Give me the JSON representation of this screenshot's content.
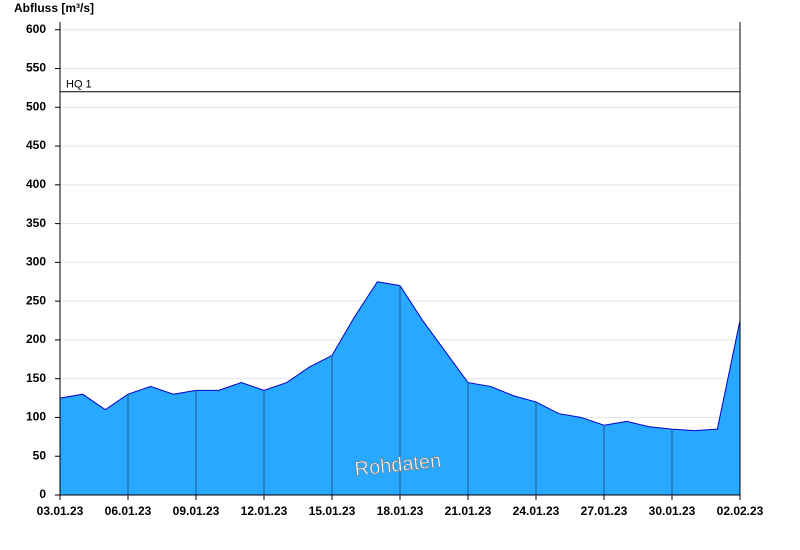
{
  "chart_data": {
    "type": "area",
    "y_label": "Abfluss [m³/s]",
    "watermark": "Rohdaten",
    "x": [
      "03.01.23",
      "04.01.23",
      "05.01.23",
      "06.01.23",
      "07.01.23",
      "08.01.23",
      "09.01.23",
      "10.01.23",
      "11.01.23",
      "12.01.23",
      "13.01.23",
      "14.01.23",
      "15.01.23",
      "16.01.23",
      "17.01.23",
      "18.01.23",
      "19.01.23",
      "20.01.23",
      "21.01.23",
      "22.01.23",
      "23.01.23",
      "24.01.23",
      "25.01.23",
      "26.01.23",
      "27.01.23",
      "28.01.23",
      "29.01.23",
      "30.01.23",
      "31.01.23",
      "01.02.23",
      "02.02.23"
    ],
    "series": [
      {
        "name": "Abfluss",
        "color": "#29a8ff",
        "line_color": "#0000cc",
        "values": [
          125,
          130,
          110,
          130,
          140,
          130,
          135,
          135,
          145,
          135,
          145,
          165,
          180,
          230,
          275,
          270,
          225,
          185,
          145,
          140,
          128,
          120,
          105,
          100,
          90,
          95,
          88,
          85,
          83,
          85,
          225
        ]
      }
    ],
    "xticks": [
      "03.01.23",
      "06.01.23",
      "09.01.23",
      "12.01.23",
      "15.01.23",
      "18.01.23",
      "21.01.23",
      "24.01.23",
      "27.01.23",
      "30.01.23",
      "02.02.23"
    ],
    "ylim": [
      0,
      610
    ],
    "yticks": [
      0,
      50,
      100,
      150,
      200,
      250,
      300,
      350,
      400,
      450,
      500,
      550,
      600
    ],
    "grid": true,
    "annotations": [
      {
        "label": "HQ 1",
        "value": 520
      }
    ]
  }
}
